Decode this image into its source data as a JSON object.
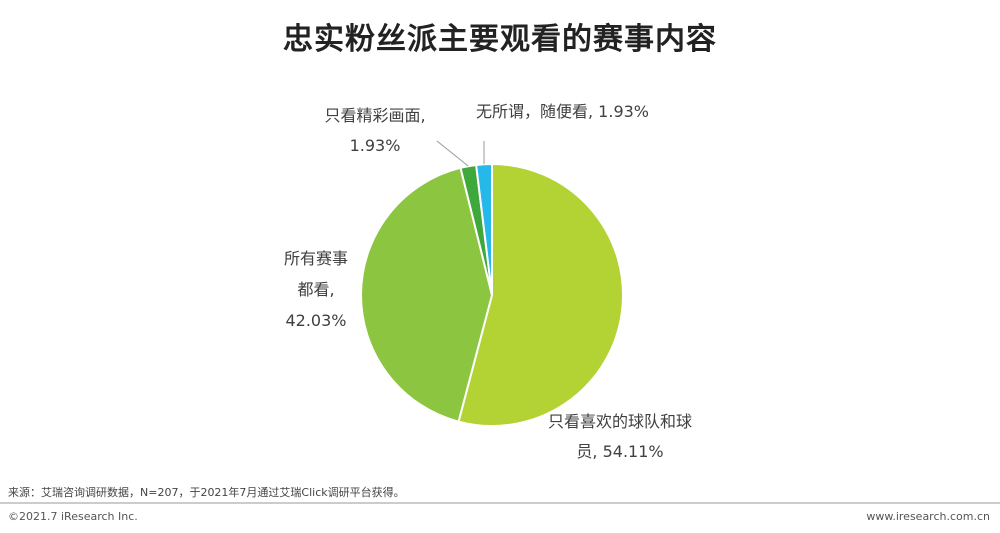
{
  "chart_data": {
    "type": "pie",
    "title": "忠实粉丝派主要观看的赛事内容",
    "labels": [
      "只看喜欢的球队和球员, 54.11%",
      "所有赛事都看, 42.03%",
      "只看精彩画面, 1.93%",
      "无所谓，随便看, 1.93%"
    ],
    "values": [
      54.11,
      42.03,
      1.93,
      1.93
    ],
    "colors": [
      "#b3d234",
      "#8cc540",
      "#3fa83a",
      "#27b8ea"
    ]
  },
  "source": "来源：艾瑞咨询调研数据，N=207，于2021年7月通过艾瑞Click调研平台获得。",
  "copyright": "©2021.7 iResearch Inc.",
  "website": "www.iresearch.com.cn"
}
